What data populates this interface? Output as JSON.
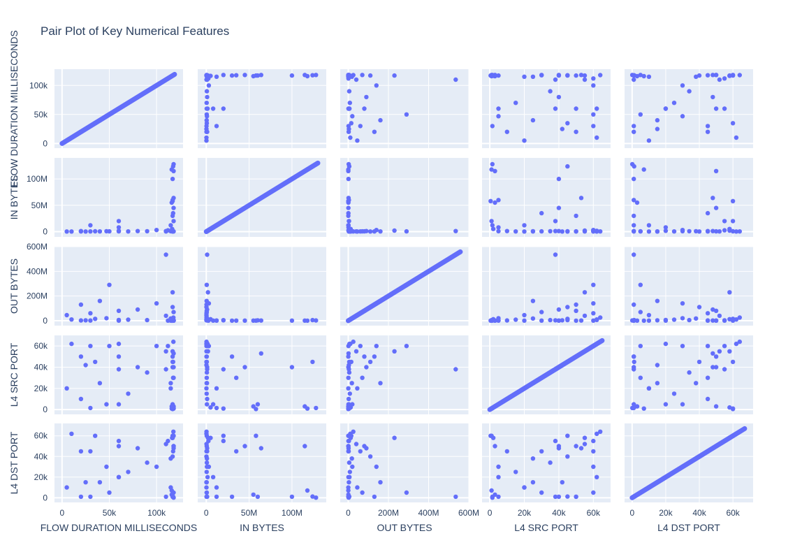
{
  "chart_data": {
    "type": "scatter",
    "title": "Pair Plot of Key Numerical Features",
    "variables": [
      "FLOW DURATION MILLISECONDS",
      "IN BYTES",
      "OUT BYTES",
      "L4 SRC PORT",
      "L4 DST PORT"
    ],
    "marker_color": "#636efa",
    "panel_background": "#e5ecf6",
    "grid": true,
    "axes": [
      {
        "name": "FLOW DURATION MILLISECONDS",
        "range": [
          -8000,
          128000
        ],
        "ticks": [
          0,
          50000,
          100000
        ],
        "tick_labels": [
          "0",
          "50k",
          "100k"
        ]
      },
      {
        "name": "IN BYTES",
        "range": [
          -10000000,
          140000000
        ],
        "ticks": [
          0,
          50000000,
          100000000
        ],
        "tick_labels": [
          "0",
          "50M",
          "100M"
        ]
      },
      {
        "name": "OUT BYTES",
        "range": [
          -40000000,
          600000000
        ],
        "ticks": [
          0,
          200000000,
          400000000,
          600000000
        ],
        "tick_labels": [
          "0",
          "200M",
          "400M",
          "600M"
        ]
      },
      {
        "name": "L4 SRC PORT",
        "range": [
          -4500,
          70000
        ],
        "ticks": [
          0,
          20000,
          40000,
          60000
        ],
        "tick_labels": [
          "0",
          "20k",
          "40k",
          "60k"
        ]
      },
      {
        "name": "L4 DST PORT",
        "range": [
          -4500,
          72000
        ],
        "ticks": [
          0,
          20000,
          40000,
          60000
        ],
        "tick_labels": [
          "0",
          "20k",
          "40k",
          "60k"
        ]
      }
    ],
    "observations": [
      [
        118000,
        128000000,
        2000000,
        1500,
        100
      ],
      [
        117500,
        124000000,
        5000000,
        45000,
        1200
      ],
      [
        116000,
        118000000,
        300000,
        1000,
        7000
      ],
      [
        118000,
        115000000,
        500000,
        3000,
        50000
      ],
      [
        117000,
        100000000,
        1000000,
        40000,
        1000
      ],
      [
        118000,
        64000000,
        1500000,
        53000,
        48000
      ],
      [
        117000,
        58000000,
        500000,
        500,
        60000
      ],
      [
        116000,
        55000000,
        600000,
        3000,
        3000
      ],
      [
        118000,
        45000000,
        600000,
        40000,
        50000
      ],
      [
        117500,
        35000000,
        600000,
        30000,
        45000
      ],
      [
        117000,
        30000000,
        300000,
        50000,
        1000
      ],
      [
        118000,
        20000000,
        4000000,
        1000,
        60000
      ],
      [
        60000,
        20000000,
        3000000,
        38000,
        55000
      ],
      [
        60000,
        8000000,
        1000000,
        5000,
        20000
      ],
      [
        30000,
        12000000,
        1500000,
        1500,
        1000
      ],
      [
        115000,
        12000000,
        500000,
        20000,
        10000
      ],
      [
        112000,
        2500000,
        1000000,
        60000,
        55000
      ],
      [
        110000,
        1000000,
        535000000,
        38000,
        1000
      ],
      [
        50000,
        500000,
        290000000,
        60000,
        5000
      ],
      [
        117000,
        2000000,
        230000000,
        55000,
        58000
      ],
      [
        40000,
        400000,
        160000000,
        25000,
        15000
      ],
      [
        100000,
        3000000,
        140000000,
        60000,
        30000
      ],
      [
        20000,
        300000,
        130000000,
        50000,
        1000
      ],
      [
        117000,
        200000,
        110000000,
        45000,
        40000
      ],
      [
        60000,
        500000,
        80000000,
        50000,
        50000
      ],
      [
        80000,
        1000000,
        90000000,
        40000,
        48000
      ],
      [
        30000,
        300000,
        60000000,
        60000,
        45000
      ],
      [
        5000,
        200000,
        45000000,
        20000,
        10000
      ],
      [
        110000,
        300000,
        40000000,
        55000,
        52000
      ],
      [
        118000,
        500000,
        70000000,
        30000,
        5000
      ],
      [
        47000,
        800000,
        20000000,
        5000,
        30000
      ],
      [
        10000,
        200000,
        10000000,
        62000,
        62000
      ],
      [
        90000,
        700000,
        5000000,
        35000,
        34000
      ],
      [
        117000,
        60000000,
        3000000,
        5000,
        1000
      ],
      [
        20000,
        1000000,
        2000000,
        10000,
        45000
      ],
      [
        70000,
        400000,
        8000000,
        15000,
        25000
      ],
      [
        35000,
        600000,
        15000000,
        45000,
        60000
      ],
      [
        117800,
        300000,
        25000000,
        64000,
        64000
      ],
      [
        116500,
        5000000,
        12000000,
        2000,
        58000
      ],
      [
        60000,
        1500000,
        6000000,
        62000,
        20000
      ],
      [
        25000,
        200000,
        3000000,
        42000,
        15000
      ],
      [
        115000,
        800000,
        18000000,
        25000,
        38000
      ]
    ]
  }
}
